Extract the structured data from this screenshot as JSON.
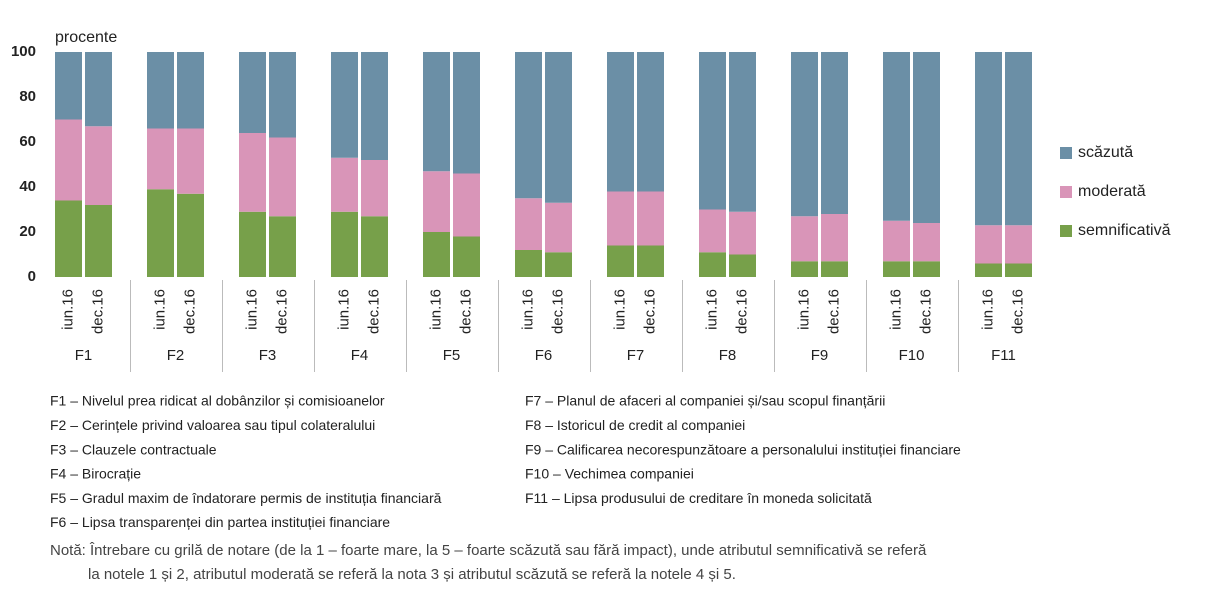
{
  "chart_data": {
    "type": "stacked_bar",
    "y_label": "procente",
    "ylim": [
      0,
      100
    ],
    "yticks": [
      0,
      20,
      40,
      60,
      80,
      100
    ],
    "groups": [
      "F1",
      "F2",
      "F3",
      "F4",
      "F5",
      "F6",
      "F7",
      "F8",
      "F9",
      "F10",
      "F11"
    ],
    "categories": [
      "iun.16",
      "dec.16",
      "iun.16",
      "dec.16",
      "iun.16",
      "dec.16",
      "iun.16",
      "dec.16",
      "iun.16",
      "dec.16",
      "iun.16",
      "dec.16",
      "iun.16",
      "dec.16",
      "iun.16",
      "dec.16",
      "iun.16",
      "dec.16",
      "iun.16",
      "dec.16",
      "iun.16",
      "dec.16"
    ],
    "series": [
      {
        "name": "semnificativă",
        "color": "#77a04a",
        "values": [
          34,
          32,
          39,
          37,
          29,
          27,
          29,
          27,
          20,
          18,
          12,
          11,
          14,
          14,
          11,
          10,
          7,
          7,
          7,
          7,
          6,
          6
        ]
      },
      {
        "name": "moderată",
        "color": "#d995b8",
        "values": [
          36,
          35,
          27,
          29,
          35,
          35,
          24,
          25,
          27,
          28,
          23,
          22,
          24,
          24,
          19,
          19,
          20,
          21,
          18,
          17,
          17,
          17
        ]
      },
      {
        "name": "scăzută",
        "color": "#6b8fa6",
        "values": [
          30,
          33,
          34,
          34,
          36,
          38,
          47,
          48,
          53,
          54,
          65,
          67,
          62,
          62,
          70,
          71,
          73,
          72,
          75,
          76,
          77,
          77
        ]
      }
    ],
    "legend_position": "right"
  },
  "legend_notes": {
    "left": [
      "F1 – Nivelul prea ridicat al dobânzilor și comisioanelor",
      "F2 – Cerințele privind valoarea sau tipul colateralului",
      "F3 – Clauzele contractuale",
      "F4 – Birocrație",
      "F5 – Gradul maxim de îndatorare permis de instituția financiară",
      "F6 – Lipsa transparenței din partea instituției  financiare"
    ],
    "right": [
      "F7 – Planul de afaceri al companiei și/sau scopul finanțării",
      "F8 – Istoricul de credit al companiei",
      "F9 – Calificarea necorespunzătoare a personalului instituției financiare",
      "F10 – Vechimea companiei",
      "F11 – Lipsa produsului de creditare în moneda solicitată"
    ]
  },
  "note": [
    "Notă: Întrebare cu grilă de notare (de la 1 – foarte mare, la 5 – foarte scăzută sau fără impact), unde atributul semnificativă se referă",
    "la notele 1 și 2, atributul moderată se referă la nota 3 și atributul scăzută se referă la notele 4 și 5."
  ]
}
